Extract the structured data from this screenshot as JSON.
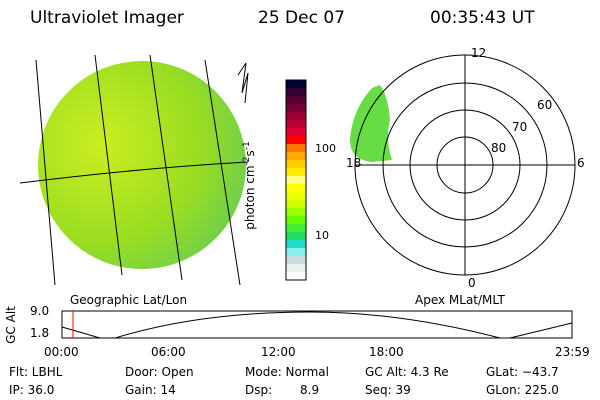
{
  "header": {
    "instrument": "Ultraviolet Imager",
    "date": "25 Dec 07",
    "time": "00:35:43 UT"
  },
  "colorbar": {
    "label": "photon cm",
    "exp1": "-2",
    "unit2": "s",
    "exp2": "-1",
    "ticks": [
      "100",
      "10"
    ],
    "colors": [
      "#000033",
      "#330033",
      "#550033",
      "#770033",
      "#990033",
      "#bb0033",
      "#dd0033",
      "#ff0000",
      "#ff7700",
      "#ffaa00",
      "#ffcc00",
      "#ffee00",
      "#ffff88",
      "#ffff00",
      "#eeff00",
      "#ccff00",
      "#99ff00",
      "#66ff00",
      "#44ee33",
      "#22dd66",
      "#22ddcc",
      "#88eeee",
      "#ccdddd",
      "#e8f2ee",
      "#ffffff"
    ]
  },
  "polar": {
    "mlt_labels": {
      "top": "12",
      "bottom": "0",
      "left": "18",
      "right": "6"
    },
    "lat_labels": [
      "60",
      "70",
      "80"
    ]
  },
  "panels": {
    "left_caption": "Geographic Lat/Lon",
    "right_caption": "Apex MLat/MLT"
  },
  "altplot": {
    "ylabel": "GC Alt",
    "yticks": [
      "9.0",
      "1.8"
    ],
    "xticks": [
      "00:00",
      "06:00",
      "12:00",
      "18:00",
      "23:59"
    ],
    "marker_color": "#ff0000"
  },
  "status": {
    "flt": "Flt: LBHL",
    "ip": "IP: 36.0",
    "door": "Door: Open",
    "gain": "Gain: 14",
    "mode": "Mode: Normal",
    "dsp_label": "Dsp:",
    "dsp_value": "8.9",
    "gcalt": "GC Alt: 4.3 Re",
    "seq": "Seq: 39",
    "glat": "GLat: −43.7",
    "glon": "GLon: 225.0"
  }
}
